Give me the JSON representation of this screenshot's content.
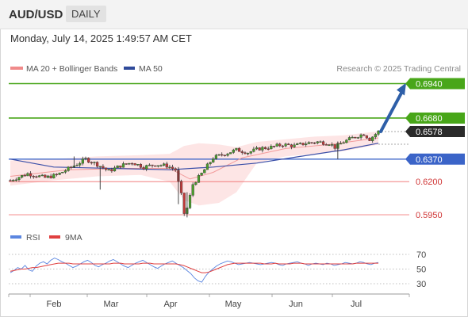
{
  "header": {
    "symbol": "AUD/USD",
    "timeframe": "DAILY"
  },
  "timestamp": "Monday, July 14, 2025 1:49:57 AM CET",
  "legend": {
    "ma20_bb": "MA 20 + Bollinger Bands",
    "ma50": "MA 50",
    "credit": "Research © 2025 Trading Central"
  },
  "rsi_legend": {
    "rsi": "RSI",
    "ma9": "9MA"
  },
  "colors": {
    "green": "#48a619",
    "blue": "#3b64c8",
    "red": "#f06a6a",
    "arrow": "#2e5fa8",
    "up": "#4a9e2b",
    "down": "#c03a3a",
    "bb_fill": "#fde0e0",
    "ma20": "#f29b9b",
    "ma50": "#3b4fa8",
    "rsi": "#5b86e0",
    "rsi_ma": "#e04040"
  },
  "levels": [
    {
      "value": "0.6940",
      "type": "target"
    },
    {
      "value": "0.6680",
      "type": "target"
    },
    {
      "value": "0.6578",
      "type": "last"
    },
    {
      "value": "0.6370",
      "type": "pivot"
    },
    {
      "value": "0.6200",
      "type": "support"
    },
    {
      "value": "0.5950",
      "type": "support"
    }
  ],
  "xaxis": {
    "months": [
      "Feb",
      "Mar",
      "Apr",
      "May",
      "Jun",
      "Jul"
    ]
  },
  "rsi_axis": {
    "ticks": [
      "70",
      "50",
      "30"
    ]
  },
  "chart_data": [
    {
      "type": "candlestick",
      "title": "AUD/USD",
      "timeframe": "DAILY",
      "ylim": [
        0.59,
        0.698
      ],
      "x_months": [
        "Feb",
        "Mar",
        "Apr",
        "May",
        "Jun",
        "Jul"
      ],
      "key_levels": [
        0.694,
        0.668,
        0.637,
        0.62,
        0.595
      ],
      "last": 0.6578,
      "close_trajectory": [
        {
          "x": 0,
          "y": 0.621
        },
        {
          "x": 6,
          "y": 0.626
        },
        {
          "x": 12,
          "y": 0.623
        },
        {
          "x": 16,
          "y": 0.625
        },
        {
          "x": 22,
          "y": 0.632
        },
        {
          "x": 26,
          "y": 0.637
        },
        {
          "x": 30,
          "y": 0.633
        },
        {
          "x": 34,
          "y": 0.628
        },
        {
          "x": 38,
          "y": 0.632
        },
        {
          "x": 42,
          "y": 0.6345
        },
        {
          "x": 46,
          "y": 0.631
        },
        {
          "x": 50,
          "y": 0.633
        },
        {
          "x": 54,
          "y": 0.632
        },
        {
          "x": 57,
          "y": 0.629
        },
        {
          "x": 59,
          "y": 0.61
        },
        {
          "x": 60,
          "y": 0.596
        },
        {
          "x": 61,
          "y": 0.6
        },
        {
          "x": 63,
          "y": 0.618
        },
        {
          "x": 66,
          "y": 0.626
        },
        {
          "x": 70,
          "y": 0.638
        },
        {
          "x": 74,
          "y": 0.641
        },
        {
          "x": 78,
          "y": 0.644
        },
        {
          "x": 82,
          "y": 0.642
        },
        {
          "x": 86,
          "y": 0.645
        },
        {
          "x": 90,
          "y": 0.646
        },
        {
          "x": 94,
          "y": 0.648
        },
        {
          "x": 98,
          "y": 0.647
        },
        {
          "x": 102,
          "y": 0.649
        },
        {
          "x": 106,
          "y": 0.65
        },
        {
          "x": 110,
          "y": 0.649
        },
        {
          "x": 112,
          "y": 0.646
        },
        {
          "x": 115,
          "y": 0.65
        },
        {
          "x": 119,
          "y": 0.654
        },
        {
          "x": 122,
          "y": 0.656
        },
        {
          "x": 124,
          "y": 0.652
        },
        {
          "x": 127,
          "y": 0.6578
        }
      ],
      "ma20": [
        {
          "x": 0,
          "y": 0.624
        },
        {
          "x": 20,
          "y": 0.629
        },
        {
          "x": 40,
          "y": 0.63
        },
        {
          "x": 55,
          "y": 0.63
        },
        {
          "x": 62,
          "y": 0.622
        },
        {
          "x": 70,
          "y": 0.627
        },
        {
          "x": 80,
          "y": 0.638
        },
        {
          "x": 95,
          "y": 0.645
        },
        {
          "x": 110,
          "y": 0.648
        },
        {
          "x": 127,
          "y": 0.653
        }
      ],
      "ma50": [
        {
          "x": 0,
          "y": 0.637
        },
        {
          "x": 15,
          "y": 0.631
        },
        {
          "x": 35,
          "y": 0.63
        },
        {
          "x": 55,
          "y": 0.629
        },
        {
          "x": 70,
          "y": 0.631
        },
        {
          "x": 85,
          "y": 0.634
        },
        {
          "x": 100,
          "y": 0.639
        },
        {
          "x": 115,
          "y": 0.644
        },
        {
          "x": 127,
          "y": 0.649
        }
      ],
      "bollinger": {
        "upper_start": 0.636,
        "upper_peak": 0.65,
        "lower_trough": 0.6
      },
      "projection": [
        {
          "x": 127,
          "y": 0.6578
        },
        {
          "x": 137,
          "y": 0.694
        }
      ]
    },
    {
      "type": "line",
      "title": "RSI",
      "ylim": [
        20,
        80
      ],
      "ticks": [
        70,
        50,
        30
      ],
      "series": [
        {
          "name": "RSI",
          "values": [
            45,
            48,
            52,
            50,
            55,
            49,
            47,
            54,
            58,
            60,
            57,
            62,
            65,
            63,
            60,
            58,
            55,
            52,
            54,
            57,
            60,
            62,
            59,
            55,
            53,
            56,
            58,
            61,
            63,
            60,
            57,
            54,
            52,
            55,
            58,
            60,
            62,
            59,
            56,
            53,
            51,
            54,
            57,
            59,
            61,
            58,
            55,
            52,
            48,
            44,
            38,
            34,
            32,
            40,
            46,
            50,
            54,
            57,
            59,
            61,
            60,
            58,
            56,
            57,
            58,
            59,
            58,
            57,
            56,
            57,
            58,
            59,
            58,
            56,
            55,
            57,
            58,
            59,
            60,
            58,
            57,
            55,
            57,
            58,
            57,
            56,
            58,
            57,
            55,
            56,
            57,
            59,
            58,
            57,
            58,
            60,
            59,
            57,
            56,
            58,
            59
          ]
        },
        {
          "name": "9MA",
          "values": [
            47,
            48,
            49,
            50,
            50,
            51,
            52,
            52,
            53,
            54,
            55,
            56,
            57,
            58,
            58,
            58,
            58,
            57,
            57,
            57,
            57,
            57,
            57,
            57,
            57,
            57,
            57,
            57,
            58,
            58,
            58,
            57,
            57,
            57,
            57,
            57,
            58,
            58,
            58,
            57,
            57,
            57,
            57,
            57,
            57,
            57,
            56,
            55,
            53,
            51,
            49,
            47,
            45,
            45,
            46,
            48,
            50,
            52,
            54,
            56,
            57,
            58,
            58,
            58,
            58,
            58,
            58,
            58,
            58,
            57,
            57,
            57,
            58,
            57,
            57,
            57,
            57,
            58,
            58,
            58,
            57,
            57,
            57,
            57,
            57,
            57,
            57,
            57,
            57,
            57,
            57,
            57,
            57,
            57,
            58,
            58,
            58,
            58,
            58,
            58,
            58
          ]
        }
      ]
    }
  ]
}
